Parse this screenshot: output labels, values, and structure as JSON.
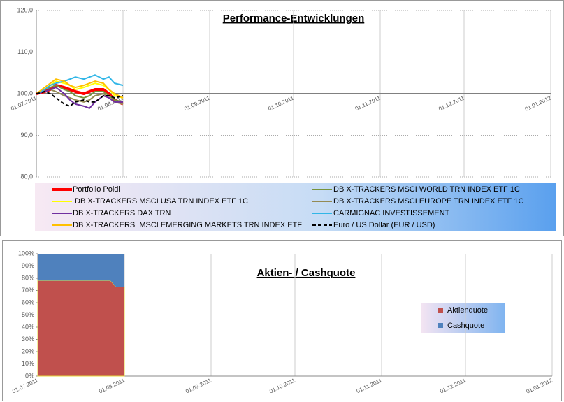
{
  "chart_data": [
    {
      "type": "line",
      "title": "Performance-Entwicklungen",
      "x": [
        "01.07.2011",
        "04.07.2011",
        "06.07.2011",
        "08.07.2011",
        "11.07.2011",
        "13.07.2011",
        "15.07.2011",
        "18.07.2011",
        "20.07.2011",
        "22.07.2011",
        "25.07.2011",
        "27.07.2011",
        "29.07.2011",
        "01.08.2011"
      ],
      "series": [
        {
          "name": "Portfolio Poldi",
          "color": "#ff0000",
          "width": 4,
          "values": [
            100,
            100.5,
            101,
            102,
            101.5,
            101,
            100.5,
            100,
            100.5,
            101,
            101,
            100,
            98.5,
            97.5
          ]
        },
        {
          "name": "DB X-TRACKERS MSCI WORLD TRN INDEX ETF 1C",
          "color": "#77933c",
          "width": 2,
          "values": [
            100,
            101,
            101.5,
            102,
            101,
            100.5,
            99.5,
            99,
            99.5,
            100.5,
            100.5,
            99.5,
            98.5,
            98
          ]
        },
        {
          "name": "DB X-TRACKERS MSCI USA TRN INDEX ETF 1C",
          "color": "#ffff00",
          "width": 2,
          "values": [
            100,
            101,
            102,
            103,
            102.5,
            102,
            101,
            101.5,
            102,
            102.5,
            102,
            101,
            99.5,
            99
          ]
        },
        {
          "name": "DB X-TRACKERS MSCI EUROPE TRN INDEX ETF 1C",
          "color": "#948a54",
          "width": 2,
          "values": [
            100,
            100.5,
            101,
            100.5,
            99.5,
            99,
            98.5,
            98,
            98.5,
            99.5,
            100,
            99,
            98,
            97.5
          ]
        },
        {
          "name": "DB X-TRACKERS DAX TRN",
          "color": "#7030a0",
          "width": 2,
          "values": [
            100,
            100.5,
            101,
            101.5,
            100,
            98.5,
            97.5,
            97,
            96.5,
            98,
            99.5,
            99,
            98,
            98
          ]
        },
        {
          "name": "CARMIGNAC INVESTISSEMENT",
          "color": "#31b6e7",
          "width": 2,
          "values": [
            100,
            101,
            102,
            102.5,
            103,
            103.5,
            104,
            103.5,
            104,
            104.5,
            103.5,
            104,
            102.5,
            102
          ]
        },
        {
          "name": "DB X-TRACKERS  MSCI EMERGING MARKETS TRN INDEX ETF",
          "color": "#ffc000",
          "width": 2,
          "values": [
            100,
            101.5,
            102.5,
            103.5,
            103,
            102,
            101.5,
            102,
            102.5,
            103,
            102.5,
            101,
            100,
            99
          ]
        },
        {
          "name": "Euro / US Dollar (EUR / USD)",
          "color": "#000000",
          "width": 2,
          "dash": true,
          "values": [
            100,
            100.5,
            100,
            99,
            97.5,
            97,
            98,
            98.5,
            98,
            98,
            99.5,
            99.5,
            99,
            99.5
          ]
        }
      ],
      "xlim": [
        "01.07.2011",
        "01.01.2012"
      ],
      "xticks": [
        "01.07.2011",
        "01.08.2011",
        "01.09.2011",
        "01.10.2011",
        "01.11.2011",
        "01.12.2011",
        "01.01.2012"
      ],
      "ylim": [
        80,
        120
      ],
      "yticks": [
        {
          "value": 80,
          "label": "80,0"
        },
        {
          "value": 90,
          "label": "90,0"
        },
        {
          "value": 100,
          "label": "100,0"
        },
        {
          "value": 110,
          "label": "110,0"
        },
        {
          "value": 120,
          "label": "120,0"
        }
      ],
      "x_axis_crosses": 100,
      "grid": true,
      "legend": "bottom"
    },
    {
      "type": "area",
      "stacked": true,
      "title": "Aktien- / Cashquote",
      "x": [
        "01.07.2011",
        "04.07.2011",
        "06.07.2011",
        "08.07.2011",
        "11.07.2011",
        "13.07.2011",
        "15.07.2011",
        "18.07.2011",
        "20.07.2011",
        "22.07.2011",
        "25.07.2011",
        "27.07.2011",
        "29.07.2011",
        "01.08.2011"
      ],
      "series": [
        {
          "name": "Aktienquote",
          "color": "#c0504d",
          "values": [
            78,
            78,
            78,
            78,
            78,
            78,
            78,
            78,
            78,
            78,
            78,
            78,
            73,
            73
          ]
        },
        {
          "name": "Cashquote",
          "color": "#4f81bd",
          "values": [
            22,
            22,
            22,
            22,
            22,
            22,
            22,
            22,
            22,
            22,
            22,
            22,
            27,
            27
          ]
        }
      ],
      "xlim": [
        "01.07.2011",
        "01.01.2012"
      ],
      "xticks": [
        "01.07.2011",
        "01.08.2011",
        "01.09.2011",
        "01.10.2011",
        "01.11.2011",
        "01.12.2011",
        "01.01.2012"
      ],
      "ylim": [
        0,
        100
      ],
      "yticks": [
        {
          "value": 0,
          "label": "0%"
        },
        {
          "value": 10,
          "label": "10%"
        },
        {
          "value": 20,
          "label": "20%"
        },
        {
          "value": 30,
          "label": "30%"
        },
        {
          "value": 40,
          "label": "40%"
        },
        {
          "value": 50,
          "label": "50%"
        },
        {
          "value": 60,
          "label": "60%"
        },
        {
          "value": 70,
          "label": "70%"
        },
        {
          "value": 80,
          "label": "80%"
        },
        {
          "value": 90,
          "label": "90%"
        },
        {
          "value": 100,
          "label": "100%"
        }
      ],
      "grid": true,
      "legend": "right"
    }
  ]
}
